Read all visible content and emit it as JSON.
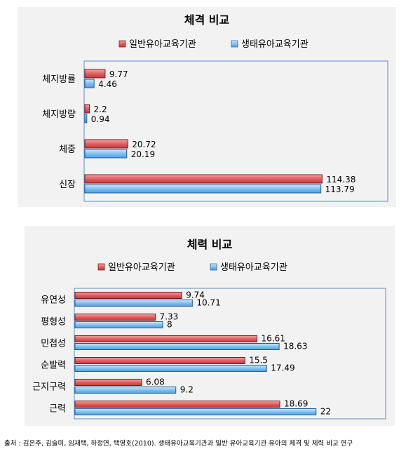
{
  "chart_data": [
    {
      "type": "bar",
      "orientation": "horizontal",
      "title": "체격 비교",
      "categories": [
        "체지방률",
        "체지방량",
        "체중",
        "신장"
      ],
      "series": [
        {
          "name": "일반유아교육기관",
          "values": [
            9.77,
            2.2,
            20.72,
            114.38
          ],
          "color": "#e05a5a"
        },
        {
          "name": "생태유아교육기관",
          "values": [
            4.46,
            0.94,
            20.19,
            113.79
          ],
          "color": "#6fb4ee"
        }
      ],
      "xlim": [
        0,
        120
      ],
      "legend": "top",
      "data_labels": true,
      "grid": false
    },
    {
      "type": "bar",
      "orientation": "horizontal",
      "title": "체력 비교",
      "categories": [
        "유연성",
        "평형성",
        "민첩성",
        "순발력",
        "근지구력",
        "근력"
      ],
      "series": [
        {
          "name": "일반유아교육기관",
          "values": [
            9.74,
            7.33,
            16.61,
            15.5,
            6.08,
            18.69
          ],
          "color": "#e05a5a"
        },
        {
          "name": "생태유아교육기관",
          "values": [
            10.71,
            8,
            18.63,
            17.49,
            9.2,
            22
          ],
          "color": "#6fb4ee"
        }
      ],
      "xlim": [
        0,
        24
      ],
      "legend": "top",
      "data_labels": true,
      "grid": false
    }
  ],
  "source": "출처 : 김은주, 김슬미, 임재택, 하정연, 택영호(2010). 생태유아교육기관과 일반 유아교육기관 유아의 체격 및 체력 비교 연구"
}
